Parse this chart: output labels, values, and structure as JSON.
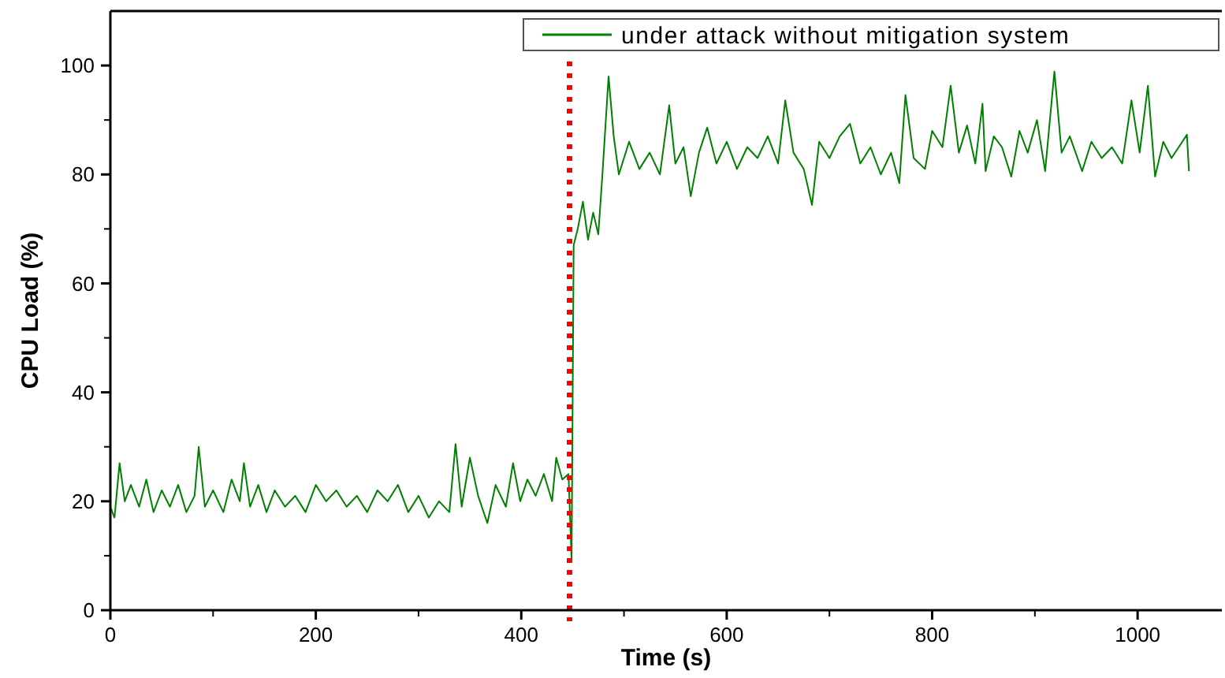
{
  "chart_data": {
    "type": "line",
    "xlabel": "Time (s)",
    "ylabel": "CPU Load (%)",
    "xlim": [
      0,
      1082
    ],
    "ylim": [
      0,
      110
    ],
    "xticks": [
      0,
      200,
      400,
      600,
      800,
      1000
    ],
    "yticks": [
      0,
      20,
      40,
      60,
      80,
      100
    ],
    "legend": "top right",
    "grid": false,
    "marker": "none",
    "line_style": "solid",
    "ref_lines": [
      {
        "axis": "x",
        "value": 447,
        "label": null,
        "color": "#ff0000",
        "line_style": "dotted"
      }
    ],
    "series": [
      {
        "name": "under attack without mitigation system",
        "color": "#007f00",
        "x": [
          0,
          4,
          9,
          14,
          20,
          28,
          35,
          42,
          50,
          58,
          66,
          74,
          82,
          86,
          92,
          100,
          110,
          118,
          126,
          130,
          136,
          144,
          152,
          160,
          170,
          180,
          190,
          200,
          210,
          220,
          230,
          240,
          250,
          260,
          270,
          280,
          290,
          300,
          310,
          320,
          330,
          336,
          342,
          350,
          358,
          367,
          375,
          385,
          392,
          399,
          406,
          414,
          422,
          430,
          434,
          440,
          446,
          449,
          451,
          455,
          460,
          465,
          470,
          475,
          479,
          485,
          490,
          495,
          505,
          515,
          525,
          535,
          544,
          550,
          558,
          565,
          573,
          581,
          590,
          600,
          610,
          620,
          630,
          640,
          650,
          657,
          665,
          675,
          683,
          690,
          700,
          710,
          720,
          730,
          740,
          750,
          760,
          768,
          774,
          782,
          793,
          800,
          810,
          818,
          826,
          834,
          842,
          849,
          852,
          860,
          868,
          877,
          885,
          893,
          902,
          910,
          919,
          926,
          934,
          946,
          955,
          965,
          975,
          985,
          994,
          1002,
          1010,
          1017,
          1025,
          1033,
          1040,
          1048,
          1050
        ],
        "values": [
          19,
          17,
          27,
          20,
          23,
          19,
          24,
          18,
          22,
          19,
          23,
          18,
          21,
          30,
          19,
          22,
          18,
          24,
          20,
          27,
          19,
          23,
          18,
          22,
          19,
          21,
          18,
          23,
          20,
          22,
          19,
          21,
          18,
          22,
          20,
          23,
          18,
          21,
          17,
          20,
          18,
          30.5,
          19,
          28,
          21,
          16,
          23,
          19,
          27,
          20,
          24,
          21,
          25,
          20,
          28,
          24,
          25,
          9,
          67,
          70,
          75,
          68,
          73,
          69,
          80,
          98,
          87,
          80,
          86,
          81,
          84,
          80,
          92.7,
          82,
          85,
          76,
          84,
          88.6,
          82,
          86,
          81,
          85,
          83,
          87,
          82,
          93.6,
          84,
          81,
          74.4,
          86,
          83,
          87,
          89.3,
          82,
          85,
          80,
          84,
          78.4,
          94.6,
          83,
          81,
          88,
          85,
          96.3,
          84,
          89,
          82,
          93,
          80.6,
          87,
          85,
          79.6,
          88,
          84,
          90,
          80.6,
          98.9,
          84,
          87,
          80.6,
          86,
          83,
          85,
          82,
          93.6,
          84,
          96.3,
          79.6,
          86,
          83,
          85,
          87.3,
          80.6
        ]
      }
    ]
  }
}
